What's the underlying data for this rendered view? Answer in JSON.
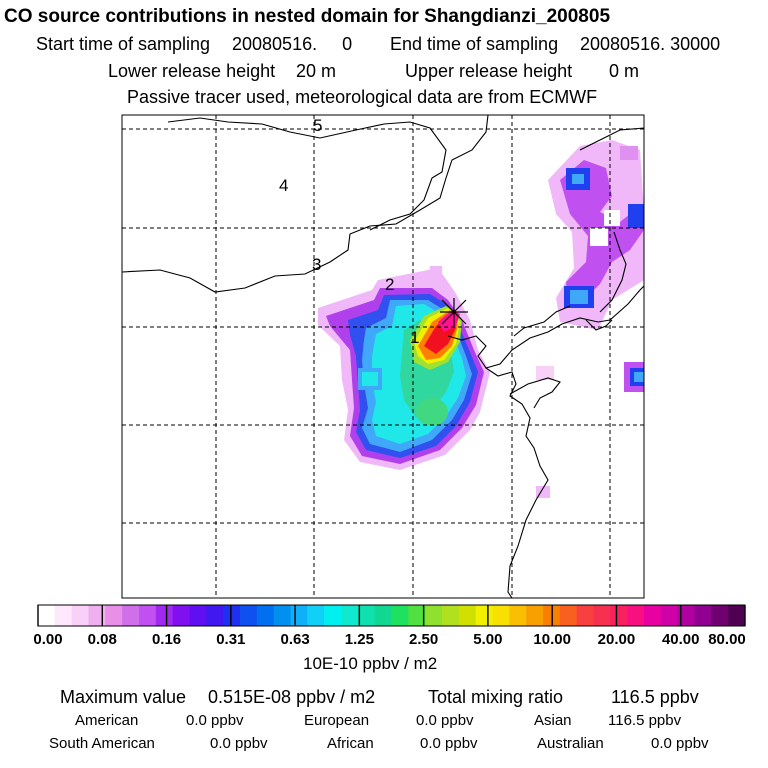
{
  "header": {
    "title": "CO  source contributions in nested domain for Shangdianzi_200805",
    "start_label": "Start time of sampling",
    "start_value": "20080516.     0",
    "end_label": "End time of sampling",
    "end_value": "20080516. 30000",
    "lower_label": "Lower release height",
    "lower_value": "20 m",
    "upper_label": "Upper release height",
    "upper_value": "0 m",
    "note": "Passive tracer used, meteorological data are from ECMWF"
  },
  "map": {
    "region_labels": [
      "1",
      "2",
      "3",
      "4",
      "5"
    ],
    "receptor_marker": "star-cross",
    "plume_colors": {
      "light_magenta": "#f0b8f8",
      "magenta": "#d060f0",
      "purple": "#9020e8",
      "blue": "#2040f0",
      "light_blue": "#40a8f8",
      "cyan": "#20e8e8",
      "green": "#30d080",
      "lime": "#a0e030",
      "yellow": "#f0f000",
      "orange": "#ff8000",
      "red": "#f01020",
      "pink": "#ff1090"
    }
  },
  "colorbar": {
    "ticks": [
      "0.00",
      "0.08",
      "0.16",
      "0.31",
      "0.63",
      "1.25",
      "2.50",
      "5.00",
      "10.00",
      "20.00",
      "40.00",
      "80.00"
    ],
    "colors": [
      "#ffffff",
      "#fde8fd",
      "#f8d0f8",
      "#f0b0f0",
      "#e890e8",
      "#d070e8",
      "#c050f0",
      "#a028f0",
      "#8010f0",
      "#6010f0",
      "#4018f0",
      "#2030f0",
      "#1050f0",
      "#0070f0",
      "#0090f0",
      "#10b0f8",
      "#10d0f8",
      "#00f0f0",
      "#10e8d0",
      "#10e0b0",
      "#10d890",
      "#20e060",
      "#50e040",
      "#90e030",
      "#b0e020",
      "#d0e000",
      "#f0f000",
      "#f8e000",
      "#f8c000",
      "#f8a000",
      "#f88000",
      "#f86020",
      "#f84040",
      "#f83050",
      "#f82060",
      "#f81080",
      "#e800a0",
      "#d000a8",
      "#b000a0",
      "#900090",
      "#700070",
      "#500050"
    ],
    "unit": "10E-10 ppbv / m2"
  },
  "footer": {
    "max_label": "Maximum value",
    "max_value": "0.515E-08 ppbv / m2",
    "total_label": "Total mixing ratio",
    "total_value": "116.5 ppbv",
    "rows": [
      [
        {
          "name": "American",
          "value": "0.0 ppbv"
        },
        {
          "name": "European",
          "value": "0.0 ppbv"
        },
        {
          "name": "Asian",
          "value": "116.5 ppbv"
        }
      ],
      [
        {
          "name": "South American",
          "value": "0.0 ppbv"
        },
        {
          "name": "African",
          "value": "0.0 ppbv"
        },
        {
          "name": "Australian",
          "value": "0.0 ppbv"
        }
      ]
    ]
  }
}
